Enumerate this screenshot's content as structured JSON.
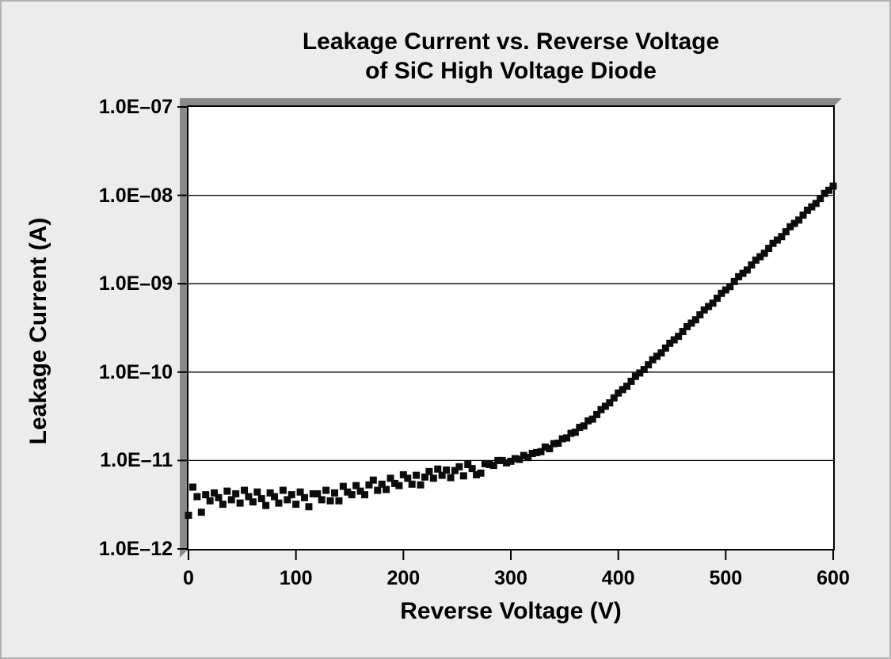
{
  "figure": {
    "background": "#ececec",
    "outer_border_color": "#b2b2b2",
    "bevel_color": "#8a8a8a",
    "plot_background": "#ffffff",
    "frame_color": "#000000",
    "gridline_color": "#000000",
    "marker_color": "#0c0c0c"
  },
  "chart_data": {
    "type": "scatter",
    "title": "Leakage Current vs. Reverse Voltage of SiC High Voltage Diode",
    "title_lines": [
      "Leakage Current vs. Reverse Voltage",
      "of SiC High Voltage Diode"
    ],
    "xlabel": "Reverse Voltage (V)",
    "ylabel": "Leakage Current (A)",
    "grid": "horizontal-decade-lines",
    "legend": "none",
    "marker": "filled-square",
    "x_axis": {
      "scale": "linear",
      "min": 0,
      "max": 600,
      "ticks": [
        0,
        100,
        200,
        300,
        400,
        500,
        600
      ],
      "tick_labels": [
        "0",
        "100",
        "200",
        "300",
        "400",
        "500",
        "600"
      ]
    },
    "y_axis": {
      "scale": "log",
      "min": 1e-12,
      "max": 1e-07,
      "tick_values": [
        1e-07,
        1e-08,
        1e-09,
        1e-10,
        1e-11,
        1e-12
      ],
      "tick_labels": [
        "1.0E–07",
        "1.0E–08",
        "1.0E–09",
        "1.0E–10",
        "1.0E–11",
        "1.0E–12"
      ]
    },
    "series": [
      {
        "name": "leakage-current",
        "color": "#0c0c0c",
        "points": [
          [
            0,
            2.4e-12
          ],
          [
            4,
            5e-12
          ],
          [
            8,
            3.9e-12
          ],
          [
            12,
            2.6e-12
          ],
          [
            16,
            4.1e-12
          ],
          [
            20,
            3.5e-12
          ],
          [
            24,
            4.3e-12
          ],
          [
            28,
            3.8e-12
          ],
          [
            32,
            3.2e-12
          ],
          [
            36,
            4.5e-12
          ],
          [
            40,
            3.6e-12
          ],
          [
            44,
            4.2e-12
          ],
          [
            48,
            3.3e-12
          ],
          [
            52,
            4.6e-12
          ],
          [
            56,
            3.9e-12
          ],
          [
            60,
            3.4e-12
          ],
          [
            64,
            4.4e-12
          ],
          [
            68,
            3.7e-12
          ],
          [
            72,
            3.1e-12
          ],
          [
            76,
            4.3e-12
          ],
          [
            80,
            3.9e-12
          ],
          [
            84,
            3.3e-12
          ],
          [
            88,
            4.6e-12
          ],
          [
            92,
            3.6e-12
          ],
          [
            96,
            4.1e-12
          ],
          [
            100,
            3.2e-12
          ],
          [
            104,
            4.4e-12
          ],
          [
            108,
            3.8e-12
          ],
          [
            112,
            3e-12
          ],
          [
            116,
            4.2e-12
          ],
          [
            120,
            4.2e-12
          ],
          [
            124,
            3.6e-12
          ],
          [
            128,
            4.6e-12
          ],
          [
            132,
            3.5e-12
          ],
          [
            136,
            4.3e-12
          ],
          [
            140,
            3.5e-12
          ],
          [
            144,
            5.1e-12
          ],
          [
            148,
            4.4e-12
          ],
          [
            152,
            4.1e-12
          ],
          [
            156,
            5.2e-12
          ],
          [
            160,
            4.5e-12
          ],
          [
            164,
            4.1e-12
          ],
          [
            168,
            5.3e-12
          ],
          [
            172,
            6e-12
          ],
          [
            176,
            4.6e-12
          ],
          [
            180,
            5.4e-12
          ],
          [
            184,
            4.7e-12
          ],
          [
            188,
            6.3e-12
          ],
          [
            192,
            5.5e-12
          ],
          [
            196,
            5.2e-12
          ],
          [
            200,
            6.9e-12
          ],
          [
            204,
            6.3e-12
          ],
          [
            208,
            5.4e-12
          ],
          [
            212,
            6.8e-12
          ],
          [
            216,
            5.3e-12
          ],
          [
            220,
            6.5e-12
          ],
          [
            224,
            7.5e-12
          ],
          [
            228,
            6.3e-12
          ],
          [
            232,
            8e-12
          ],
          [
            236,
            6.8e-12
          ],
          [
            240,
            7.8e-12
          ],
          [
            244,
            6.4e-12
          ],
          [
            248,
            7.7e-12
          ],
          [
            252,
            8.5e-12
          ],
          [
            256,
            6.7e-12
          ],
          [
            260,
            9e-12
          ],
          [
            264,
            8.1e-12
          ],
          [
            268,
            6.9e-12
          ],
          [
            272,
            7.2e-12
          ],
          [
            276,
            9.2e-12
          ],
          [
            280,
            9e-12
          ],
          [
            284,
            8.8e-12
          ],
          [
            288,
            1e-11
          ],
          [
            292,
            1e-11
          ],
          [
            296,
            9.4e-12
          ],
          [
            300,
            9.8e-12
          ],
          [
            304,
            1.05e-11
          ],
          [
            308,
            1.03e-11
          ],
          [
            312,
            1.14e-11
          ],
          [
            316,
            1.08e-11
          ],
          [
            320,
            1.2e-11
          ],
          [
            324,
            1.23e-11
          ],
          [
            328,
            1.26e-11
          ],
          [
            332,
            1.42e-11
          ],
          [
            336,
            1.36e-11
          ],
          [
            340,
            1.55e-11
          ],
          [
            344,
            1.57e-11
          ],
          [
            348,
            1.76e-11
          ],
          [
            352,
            1.8e-11
          ],
          [
            356,
            2.03e-11
          ],
          [
            360,
            2.09e-11
          ],
          [
            364,
            2.37e-11
          ],
          [
            368,
            2.46e-11
          ],
          [
            372,
            2.81e-11
          ],
          [
            376,
            2.94e-11
          ],
          [
            380,
            3.31e-11
          ],
          [
            384,
            3.76e-11
          ],
          [
            388,
            4.11e-11
          ],
          [
            392,
            4.49e-11
          ],
          [
            396,
            5.11e-11
          ],
          [
            400,
            5.8e-11
          ],
          [
            404,
            6.34e-11
          ],
          [
            408,
            6.92e-11
          ],
          [
            412,
            7.87e-11
          ],
          [
            416,
            8.95e-11
          ],
          [
            420,
            9.77e-11
          ],
          [
            424,
            1.07e-10
          ],
          [
            428,
            1.21e-10
          ],
          [
            432,
            1.38e-10
          ],
          [
            436,
            1.51e-10
          ],
          [
            440,
            1.65e-10
          ],
          [
            444,
            1.87e-10
          ],
          [
            448,
            2.12e-10
          ],
          [
            452,
            2.32e-10
          ],
          [
            456,
            2.54e-10
          ],
          [
            460,
            2.88e-10
          ],
          [
            464,
            3.27e-10
          ],
          [
            468,
            3.58e-10
          ],
          [
            472,
            3.91e-10
          ],
          [
            476,
            4.45e-10
          ],
          [
            480,
            5.05e-10
          ],
          [
            484,
            5.52e-10
          ],
          [
            488,
            6.03e-10
          ],
          [
            492,
            6.85e-10
          ],
          [
            496,
            7.79e-10
          ],
          [
            500,
            8.51e-10
          ],
          [
            504,
            9.29e-10
          ],
          [
            508,
            1.06e-09
          ],
          [
            512,
            1.2e-09
          ],
          [
            516,
            1.31e-09
          ],
          [
            520,
            1.43e-09
          ],
          [
            524,
            1.63e-09
          ],
          [
            528,
            1.85e-09
          ],
          [
            532,
            2.02e-09
          ],
          [
            536,
            2.21e-09
          ],
          [
            540,
            2.51e-09
          ],
          [
            544,
            2.86e-09
          ],
          [
            548,
            3.12e-09
          ],
          [
            552,
            3.41e-09
          ],
          [
            556,
            3.87e-09
          ],
          [
            560,
            4.41e-09
          ],
          [
            564,
            4.81e-09
          ],
          [
            568,
            5.25e-09
          ],
          [
            572,
            5.97e-09
          ],
          [
            576,
            6.78e-09
          ],
          [
            580,
            7.41e-09
          ],
          [
            584,
            8.1e-09
          ],
          [
            588,
            9.2e-09
          ],
          [
            592,
            1.05e-08
          ],
          [
            596,
            1.14e-08
          ],
          [
            600,
            1.27e-08
          ]
        ]
      }
    ]
  }
}
